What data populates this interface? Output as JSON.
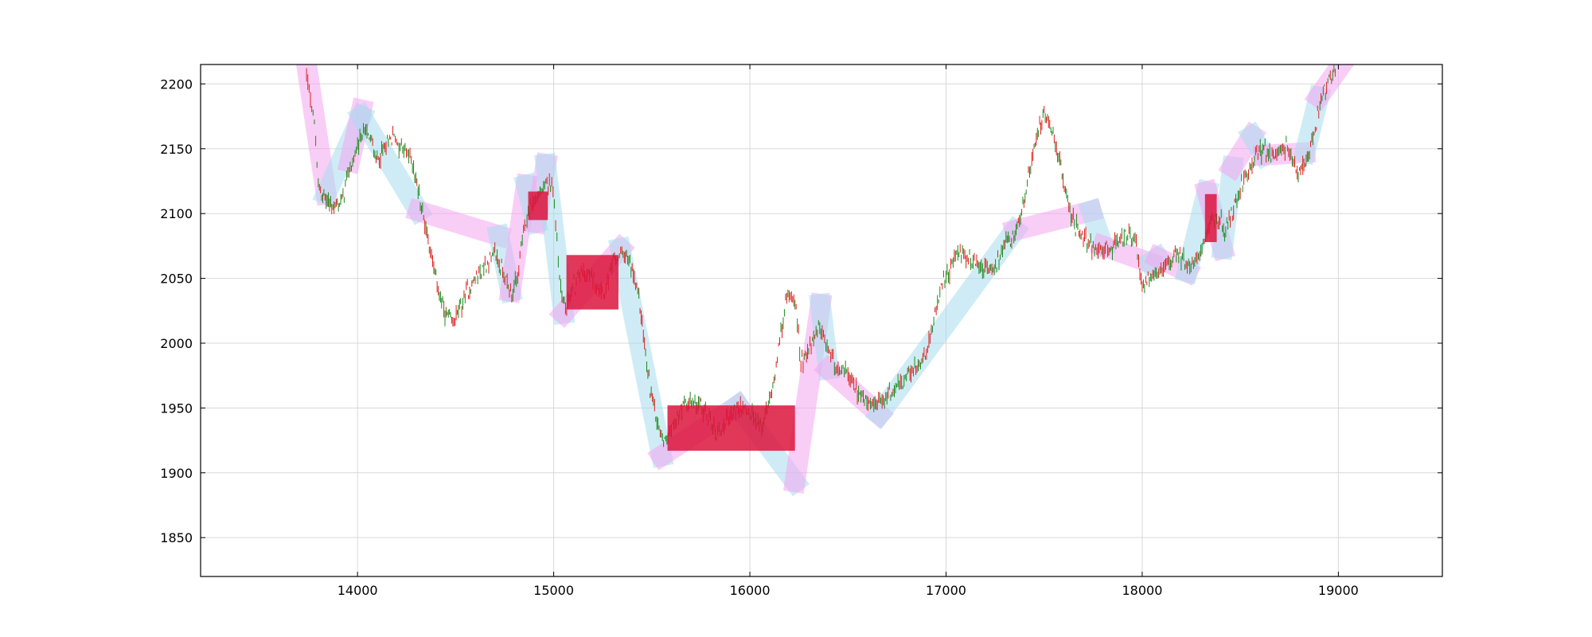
{
  "chart_data": {
    "type": "candlestick",
    "title": "",
    "xlabel": "",
    "ylabel": "",
    "xlim": [
      13200,
      19530
    ],
    "ylim": [
      1820,
      2215
    ],
    "grid": true,
    "x_ticks": [
      14000,
      15000,
      16000,
      17000,
      18000,
      19000
    ],
    "y_ticks": [
      1850,
      1900,
      1950,
      2000,
      2050,
      2100,
      2150,
      2200
    ],
    "price_path": [
      [
        13740,
        2205
      ],
      [
        13760,
        2190
      ],
      [
        13780,
        2170
      ],
      [
        13800,
        2120
      ],
      [
        13840,
        2110
      ],
      [
        13880,
        2105
      ],
      [
        13920,
        2110
      ],
      [
        13950,
        2130
      ],
      [
        14000,
        2150
      ],
      [
        14030,
        2165
      ],
      [
        14060,
        2160
      ],
      [
        14100,
        2140
      ],
      [
        14140,
        2150
      ],
      [
        14180,
        2160
      ],
      [
        14230,
        2150
      ],
      [
        14280,
        2140
      ],
      [
        14320,
        2110
      ],
      [
        14360,
        2080
      ],
      [
        14400,
        2050
      ],
      [
        14440,
        2025
      ],
      [
        14480,
        2015
      ],
      [
        14520,
        2025
      ],
      [
        14560,
        2040
      ],
      [
        14600,
        2050
      ],
      [
        14650,
        2060
      ],
      [
        14700,
        2070
      ],
      [
        14740,
        2055
      ],
      [
        14780,
        2040
      ],
      [
        14810,
        2045
      ],
      [
        14840,
        2080
      ],
      [
        14870,
        2100
      ],
      [
        14900,
        2110
      ],
      [
        14930,
        2115
      ],
      [
        14960,
        2120
      ],
      [
        14990,
        2125
      ],
      [
        15010,
        2095
      ],
      [
        15030,
        2050
      ],
      [
        15060,
        2025
      ],
      [
        15090,
        2040
      ],
      [
        15140,
        2055
      ],
      [
        15200,
        2050
      ],
      [
        15260,
        2040
      ],
      [
        15310,
        2065
      ],
      [
        15360,
        2070
      ],
      [
        15400,
        2055
      ],
      [
        15440,
        2030
      ],
      [
        15480,
        1975
      ],
      [
        15520,
        1945
      ],
      [
        15560,
        1925
      ],
      [
        15600,
        1935
      ],
      [
        15660,
        1950
      ],
      [
        15720,
        1955
      ],
      [
        15780,
        1945
      ],
      [
        15830,
        1930
      ],
      [
        15880,
        1940
      ],
      [
        15940,
        1950
      ],
      [
        16000,
        1945
      ],
      [
        16060,
        1935
      ],
      [
        16100,
        1955
      ],
      [
        16140,
        1990
      ],
      [
        16170,
        2020
      ],
      [
        16200,
        2040
      ],
      [
        16230,
        2035
      ],
      [
        16260,
        1985
      ],
      [
        16300,
        1995
      ],
      [
        16350,
        2010
      ],
      [
        16400,
        1995
      ],
      [
        16450,
        1980
      ],
      [
        16500,
        1975
      ],
      [
        16560,
        1960
      ],
      [
        16620,
        1950
      ],
      [
        16680,
        1955
      ],
      [
        16730,
        1965
      ],
      [
        16780,
        1970
      ],
      [
        16840,
        1980
      ],
      [
        16900,
        1990
      ],
      [
        16950,
        2030
      ],
      [
        17000,
        2050
      ],
      [
        17060,
        2070
      ],
      [
        17120,
        2065
      ],
      [
        17180,
        2060
      ],
      [
        17240,
        2055
      ],
      [
        17300,
        2075
      ],
      [
        17340,
        2080
      ],
      [
        17380,
        2095
      ],
      [
        17420,
        2130
      ],
      [
        17460,
        2160
      ],
      [
        17500,
        2175
      ],
      [
        17540,
        2165
      ],
      [
        17580,
        2140
      ],
      [
        17620,
        2110
      ],
      [
        17660,
        2090
      ],
      [
        17700,
        2080
      ],
      [
        17750,
        2075
      ],
      [
        17800,
        2070
      ],
      [
        17860,
        2075
      ],
      [
        17920,
        2085
      ],
      [
        17970,
        2075
      ],
      [
        18000,
        2045
      ],
      [
        18060,
        2050
      ],
      [
        18120,
        2060
      ],
      [
        18180,
        2070
      ],
      [
        18230,
        2060
      ],
      [
        18280,
        2065
      ],
      [
        18330,
        2090
      ],
      [
        18380,
        2100
      ],
      [
        18420,
        2085
      ],
      [
        18460,
        2100
      ],
      [
        18500,
        2120
      ],
      [
        18560,
        2140
      ],
      [
        18620,
        2150
      ],
      [
        18680,
        2145
      ],
      [
        18740,
        2150
      ],
      [
        18790,
        2130
      ],
      [
        18830,
        2140
      ],
      [
        18870,
        2160
      ],
      [
        18900,
        2180
      ],
      [
        18940,
        2200
      ],
      [
        18990,
        2210
      ]
    ],
    "trend_segments": [
      {
        "dir": "up",
        "points": [
          [
            13740,
            2215
          ],
          [
            13840,
            2115
          ]
        ]
      },
      {
        "dir": "down",
        "points": [
          [
            13840,
            2115
          ],
          [
            14020,
            2175
          ]
        ]
      },
      {
        "dir": "up",
        "points": [
          [
            13960,
            2140
          ],
          [
            14020,
            2180
          ]
        ]
      },
      {
        "dir": "down",
        "points": [
          [
            14020,
            2175
          ],
          [
            14310,
            2102
          ]
        ]
      },
      {
        "dir": "up",
        "points": [
          [
            14310,
            2102
          ],
          [
            14720,
            2083
          ]
        ]
      },
      {
        "dir": "down",
        "points": [
          [
            14720,
            2083
          ],
          [
            14780,
            2040
          ]
        ]
      },
      {
        "dir": "up",
        "points": [
          [
            14780,
            2040
          ],
          [
            14860,
            2122
          ]
        ]
      },
      {
        "dir": "down",
        "points": [
          [
            14860,
            2122
          ],
          [
            14910,
            2093
          ]
        ]
      },
      {
        "dir": "up",
        "points": [
          [
            14910,
            2093
          ],
          [
            14960,
            2138
          ]
        ]
      },
      {
        "dir": "down",
        "points": [
          [
            14960,
            2138
          ],
          [
            15050,
            2023
          ]
        ]
      },
      {
        "dir": "up",
        "points": [
          [
            15050,
            2023
          ],
          [
            15340,
            2073
          ]
        ]
      },
      {
        "dir": "down",
        "points": [
          [
            15340,
            2073
          ],
          [
            15550,
            1913
          ]
        ]
      },
      {
        "dir": "up",
        "points": [
          [
            15550,
            1913
          ],
          [
            15940,
            1952
          ]
        ]
      },
      {
        "dir": "down",
        "points": [
          [
            15940,
            1952
          ],
          [
            16230,
            1893
          ]
        ]
      },
      {
        "dir": "up",
        "points": [
          [
            16230,
            1893
          ],
          [
            16360,
            2030
          ]
        ]
      },
      {
        "dir": "down",
        "points": [
          [
            16360,
            2030
          ],
          [
            16400,
            1980
          ]
        ]
      },
      {
        "dir": "up",
        "points": [
          [
            16400,
            1980
          ],
          [
            16660,
            1945
          ]
        ]
      },
      {
        "dir": "down",
        "points": [
          [
            16660,
            1945
          ],
          [
            17350,
            2087
          ]
        ]
      },
      {
        "dir": "up",
        "points": [
          [
            17350,
            2087
          ],
          [
            17740,
            2102
          ]
        ]
      },
      {
        "dir": "down",
        "points": [
          [
            17740,
            2102
          ],
          [
            17800,
            2075
          ]
        ]
      },
      {
        "dir": "up",
        "points": [
          [
            17800,
            2075
          ],
          [
            18040,
            2062
          ]
        ]
      },
      {
        "dir": "down",
        "points": [
          [
            18040,
            2062
          ],
          [
            18080,
            2066
          ]
        ]
      },
      {
        "dir": "up",
        "points": [
          [
            18080,
            2066
          ],
          [
            18230,
            2055
          ]
        ]
      },
      {
        "dir": "down",
        "points": [
          [
            18230,
            2055
          ],
          [
            18330,
            2117
          ]
        ]
      },
      {
        "dir": "up",
        "points": [
          [
            18330,
            2117
          ],
          [
            18410,
            2073
          ]
        ]
      },
      {
        "dir": "down",
        "points": [
          [
            18410,
            2073
          ],
          [
            18460,
            2136
          ]
        ]
      },
      {
        "dir": "up",
        "points": [
          [
            18460,
            2136
          ],
          [
            18560,
            2160
          ]
        ]
      },
      {
        "dir": "down",
        "points": [
          [
            18560,
            2160
          ],
          [
            18620,
            2145
          ]
        ]
      },
      {
        "dir": "up",
        "points": [
          [
            18620,
            2145
          ],
          [
            18830,
            2147
          ]
        ]
      },
      {
        "dir": "down",
        "points": [
          [
            18830,
            2147
          ],
          [
            18900,
            2190
          ]
        ]
      },
      {
        "dir": "up",
        "points": [
          [
            18900,
            2190
          ],
          [
            19040,
            2220
          ]
        ]
      }
    ],
    "zones": [
      {
        "x": [
          14870,
          14970
        ],
        "y": [
          2095,
          2117
        ]
      },
      {
        "x": [
          15065,
          15330
        ],
        "y": [
          2026,
          2068
        ]
      },
      {
        "x": [
          15580,
          16230
        ],
        "y": [
          1917,
          1952
        ]
      },
      {
        "x": [
          18320,
          18380
        ],
        "y": [
          2078,
          2115
        ]
      }
    ],
    "colors": {
      "up_candle": "#e0201c",
      "down_candle": "#1b8a1b",
      "trend_up": "#f2a6f0",
      "trend_down": "#a8dcef",
      "zone": "#dc143c",
      "grid": "#d8d8d8",
      "axis": "#000000"
    }
  }
}
